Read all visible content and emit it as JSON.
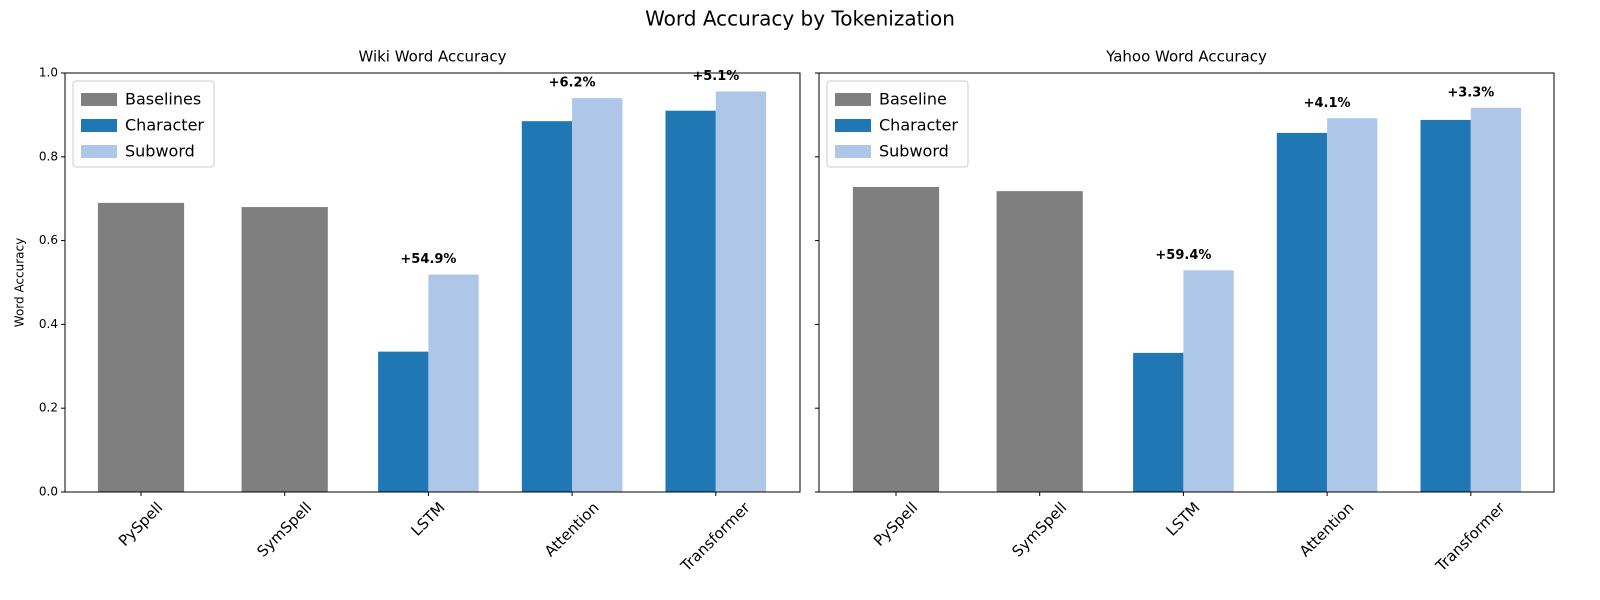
{
  "title": "Word Accuracy by Tokenization",
  "chart_data": [
    {
      "type": "bar",
      "title": "Wiki Word Accuracy",
      "ylabel": "Word Accuracy",
      "categories": [
        "PySpell",
        "SymSpell",
        "LSTM",
        "Attention",
        "Transformer"
      ],
      "series": [
        {
          "name": "Baselines",
          "color": "#7f7f7f",
          "values": [
            0.69,
            0.68,
            null,
            null,
            null
          ]
        },
        {
          "name": "Character",
          "color": "#1f77b4",
          "values": [
            null,
            null,
            0.335,
            0.885,
            0.91
          ]
        },
        {
          "name": "Subword",
          "color": "#aec7e8",
          "values": [
            null,
            null,
            0.519,
            0.94,
            0.956
          ]
        }
      ],
      "annotations": [
        null,
        null,
        "+54.9%",
        "+6.2%",
        "+5.1%"
      ],
      "ylim": [
        0,
        1
      ],
      "yticks": [
        {
          "value": 0,
          "label": "0.0"
        },
        0.2,
        0.4,
        0.6,
        0.8,
        {
          "value": 1,
          "label": "1.0"
        }
      ],
      "show_ytick_labels": true,
      "legend": "upper left"
    },
    {
      "type": "bar",
      "title": "Yahoo Word Accuracy",
      "categories": [
        "PySpell",
        "SymSpell",
        "LSTM",
        "Attention",
        "Transformer"
      ],
      "series": [
        {
          "name": "Baseline",
          "color": "#7f7f7f",
          "values": [
            0.728,
            0.718,
            null,
            null,
            null
          ]
        },
        {
          "name": "Character",
          "color": "#1f77b4",
          "values": [
            null,
            null,
            0.332,
            0.857,
            0.888
          ]
        },
        {
          "name": "Subword",
          "color": "#aec7e8",
          "values": [
            null,
            null,
            0.529,
            0.892,
            0.917
          ]
        }
      ],
      "annotations": [
        null,
        null,
        "+59.4%",
        "+4.1%",
        "+3.3%"
      ],
      "ylim": [
        0,
        1
      ],
      "yticks": [
        0,
        0.2,
        0.4,
        0.6,
        0.8,
        1
      ],
      "show_ytick_labels": false,
      "legend": "upper left"
    }
  ]
}
